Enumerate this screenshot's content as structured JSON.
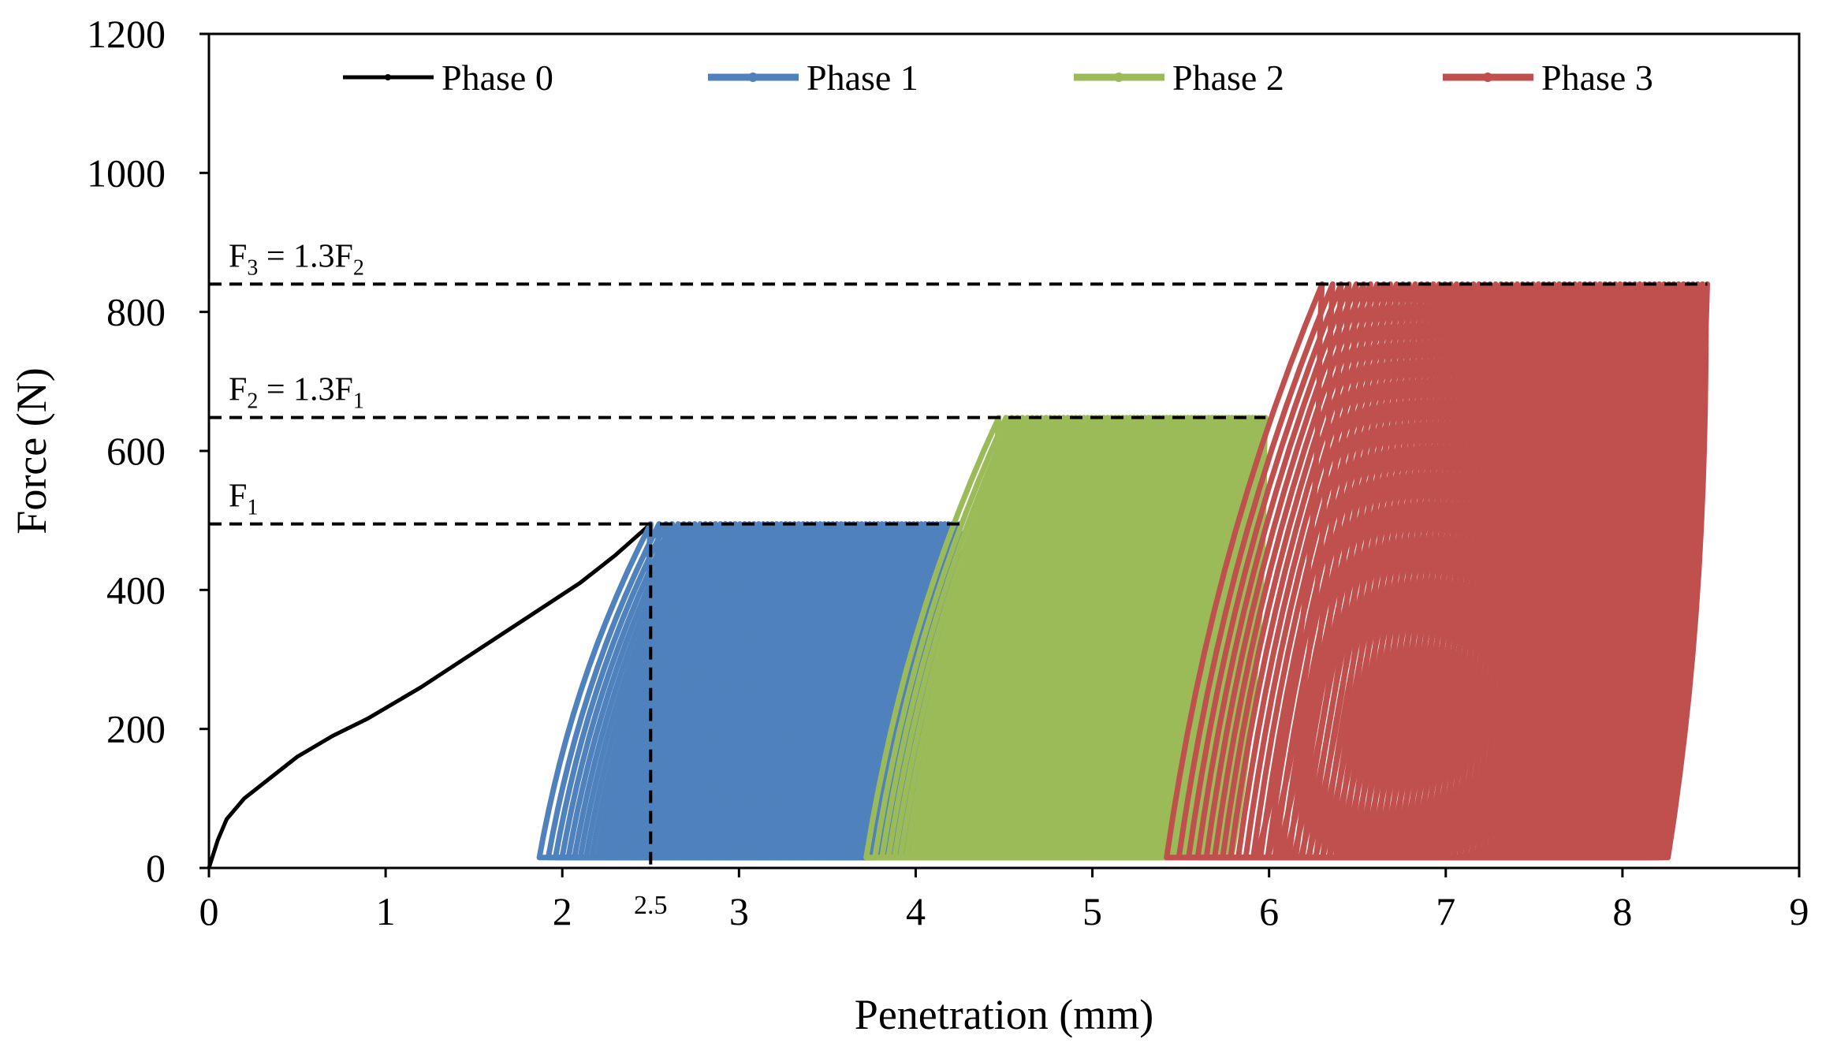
{
  "chart_data": {
    "type": "line",
    "xlabel": "Penetration (mm)",
    "ylabel": "Force (N)",
    "xlim": [
      0,
      9
    ],
    "ylim": [
      0,
      1200
    ],
    "x_ticks": [
      "0",
      "1",
      "2",
      "3",
      "4",
      "5",
      "6",
      "7",
      "8",
      "9"
    ],
    "y_ticks": [
      "0",
      "200",
      "400",
      "600",
      "800",
      "1000",
      "1200"
    ],
    "extra_x_tick": {
      "value": 2.5,
      "label": "2.5"
    },
    "grid": false,
    "legend_position": "top",
    "reference_lines": [
      {
        "force": 495,
        "label": "F",
        "sub": "1",
        "rest": "",
        "rest_sub": ""
      },
      {
        "force": 648,
        "label": "F",
        "sub": "2",
        "rest": " = 1.3F",
        "rest_sub": "1"
      },
      {
        "force": 840,
        "label": "F",
        "sub": "3",
        "rest": " = 1.3F",
        "rest_sub": "2"
      }
    ],
    "series": [
      {
        "name": "Phase 0",
        "color": "#000000",
        "kind": "monotonic",
        "x": [
          0,
          0.05,
          0.1,
          0.2,
          0.35,
          0.5,
          0.7,
          0.9,
          1.2,
          1.5,
          1.8,
          2.1,
          2.3,
          2.5
        ],
        "y": [
          0,
          40,
          70,
          100,
          130,
          160,
          190,
          215,
          260,
          310,
          360,
          410,
          450,
          495
        ]
      },
      {
        "name": "Phase 1",
        "color": "#4f81bd",
        "kind": "cyclic",
        "first_loop": {
          "x_min": 1.87,
          "x_max": 2.5
        },
        "last_loop": {
          "x_min": 3.72,
          "x_max": 4.25
        },
        "f_min": 15,
        "f_max": 495
      },
      {
        "name": "Phase 2",
        "color": "#9bbb59",
        "kind": "cyclic",
        "first_loop": {
          "x_min": 3.72,
          "x_max": 4.47
        },
        "last_loop": {
          "x_min": 5.52,
          "x_max": 5.98
        },
        "f_min": 15,
        "f_max": 648
      },
      {
        "name": "Phase 3",
        "color": "#c0504d",
        "kind": "cyclic",
        "first_loop": {
          "x_min": 5.42,
          "x_max": 6.3
        },
        "last_loop": {
          "x_min": 7.95,
          "x_max": 8.48
        },
        "f_min": 15,
        "f_max": 840
      }
    ]
  }
}
